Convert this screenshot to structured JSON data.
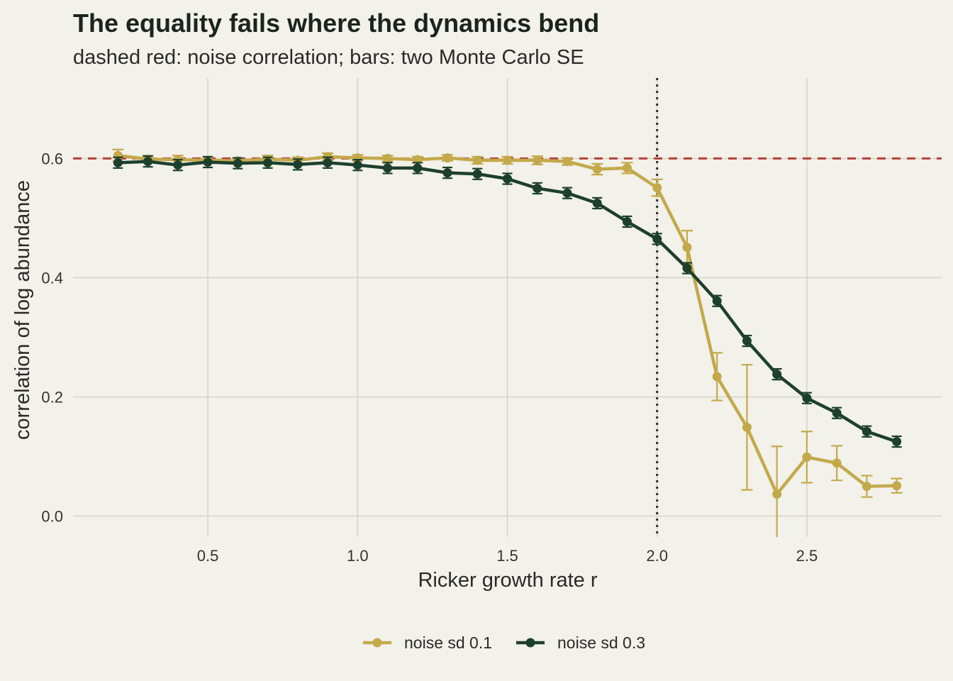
{
  "chart_data": {
    "type": "line",
    "title": "The equality fails where the dynamics bend",
    "subtitle": "dashed red: noise correlation; bars: two Monte Carlo SE",
    "xlabel": "Ricker growth rate r",
    "ylabel": "correlation of log abundance",
    "xlim": [
      0.05,
      2.95
    ],
    "ylim": [
      -0.035,
      0.735
    ],
    "xticks": [
      0.5,
      1.0,
      1.5,
      2.0,
      2.5
    ],
    "xtick_labels": [
      "0.5",
      "1.0",
      "1.5",
      "2.0",
      "2.5"
    ],
    "yticks": [
      0.0,
      0.2,
      0.4,
      0.6
    ],
    "ytick_labels": [
      "0.0",
      "0.2",
      "0.4",
      "0.6"
    ],
    "grid": true,
    "legend_position": "bottom",
    "reference_lines": [
      {
        "orientation": "horizontal",
        "value": 0.6,
        "style": "dashed",
        "color": "#b5403c"
      },
      {
        "orientation": "vertical",
        "value": 2.0,
        "style": "dotted",
        "color": "#2b2b2b"
      }
    ],
    "x": [
      0.2,
      0.3,
      0.4,
      0.5,
      0.6,
      0.7,
      0.8,
      0.9,
      1.0,
      1.1,
      1.2,
      1.3,
      1.4,
      1.5,
      1.6,
      1.7,
      1.8,
      1.9,
      2.0,
      2.1,
      2.2,
      2.3,
      2.4,
      2.5,
      2.6,
      2.7,
      2.8
    ],
    "series": [
      {
        "name": "noise sd 0.1",
        "color": "#c4a94b",
        "values": [
          0.605,
          0.599,
          0.598,
          0.597,
          0.596,
          0.599,
          0.597,
          0.603,
          0.601,
          0.6,
          0.598,
          0.601,
          0.597,
          0.597,
          0.597,
          0.595,
          0.582,
          0.584,
          0.551,
          0.451,
          0.234,
          0.149,
          0.037,
          0.099,
          0.089,
          0.05,
          0.051
        ],
        "errors": [
          0.01,
          0.006,
          0.007,
          0.005,
          0.005,
          0.006,
          0.005,
          0.006,
          0.005,
          0.005,
          0.005,
          0.005,
          0.006,
          0.006,
          0.007,
          0.006,
          0.009,
          0.009,
          0.014,
          0.028,
          0.04,
          0.105,
          0.08,
          0.043,
          0.029,
          0.018,
          0.012
        ]
      },
      {
        "name": "noise sd 0.3",
        "color": "#1d3f2e",
        "values": [
          0.593,
          0.595,
          0.589,
          0.594,
          0.592,
          0.593,
          0.59,
          0.593,
          0.589,
          0.584,
          0.584,
          0.576,
          0.574,
          0.566,
          0.55,
          0.542,
          0.525,
          0.494,
          0.465,
          0.416,
          0.361,
          0.294,
          0.238,
          0.198,
          0.173,
          0.142,
          0.125
        ]
      }
    ]
  }
}
